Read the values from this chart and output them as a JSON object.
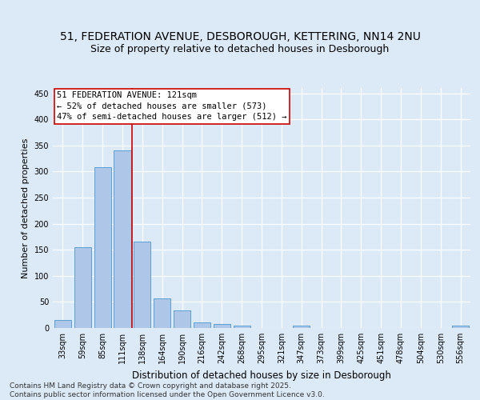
{
  "title": "51, FEDERATION AVENUE, DESBOROUGH, KETTERING, NN14 2NU",
  "subtitle": "Size of property relative to detached houses in Desborough",
  "xlabel": "Distribution of detached houses by size in Desborough",
  "ylabel": "Number of detached properties",
  "categories": [
    "33sqm",
    "59sqm",
    "85sqm",
    "111sqm",
    "138sqm",
    "164sqm",
    "190sqm",
    "216sqm",
    "242sqm",
    "268sqm",
    "295sqm",
    "321sqm",
    "347sqm",
    "373sqm",
    "399sqm",
    "425sqm",
    "451sqm",
    "478sqm",
    "504sqm",
    "530sqm",
    "556sqm"
  ],
  "values": [
    15,
    155,
    308,
    340,
    165,
    57,
    33,
    10,
    8,
    4,
    0,
    0,
    5,
    0,
    0,
    0,
    0,
    0,
    0,
    0,
    4
  ],
  "bar_color": "#aec6e8",
  "bar_edge_color": "#5a9fd4",
  "vline_x": 3.5,
  "vline_color": "#cc0000",
  "annotation_line1": "51 FEDERATION AVENUE: 121sqm",
  "annotation_line2": "← 52% of detached houses are smaller (573)",
  "annotation_line3": "47% of semi-detached houses are larger (512) →",
  "annotation_box_color": "#ffffff",
  "annotation_box_edge_color": "#cc0000",
  "ylim": [
    0,
    460
  ],
  "yticks": [
    0,
    50,
    100,
    150,
    200,
    250,
    300,
    350,
    400,
    450
  ],
  "bg_color": "#dce9f7",
  "grid_color": "#ffffff",
  "footer": "Contains HM Land Registry data © Crown copyright and database right 2025.\nContains public sector information licensed under the Open Government Licence v3.0.",
  "title_fontsize": 10,
  "subtitle_fontsize": 9,
  "xlabel_fontsize": 8.5,
  "ylabel_fontsize": 8,
  "tick_fontsize": 7,
  "annotation_fontsize": 7.5,
  "footer_fontsize": 6.5
}
